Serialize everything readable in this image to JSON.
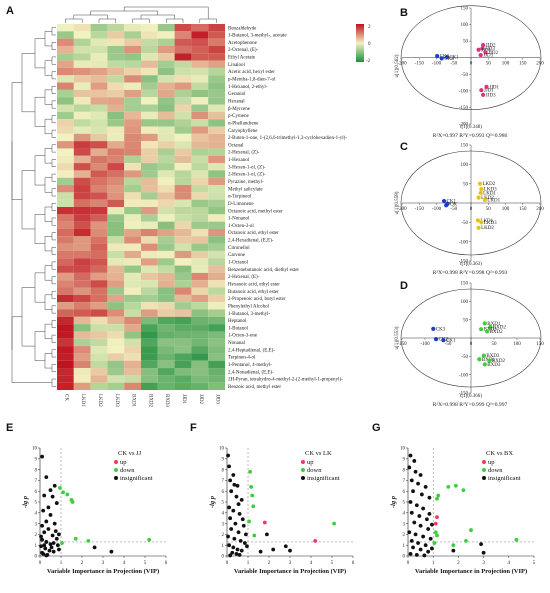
{
  "panels": {
    "A": "A",
    "B": "B",
    "C": "C",
    "D": "D",
    "E": "E",
    "F": "F",
    "G": "G"
  },
  "heatmap": {
    "compounds": [
      "Benzaldehyde",
      "1-Butanol, 3-methyl-, acetate",
      "Acetophenone",
      "2-Octenal, (E)-",
      "Ethyl Acetate",
      "Linalool",
      "Acetic acid, hexyl ester",
      "p-Mentha-1,8-dien-7-ol",
      "1-Hexanol, 2-ethyl-",
      "Geraniol",
      "Hexanal",
      "β-Myrcene",
      "p-Cymene",
      "α-Phellandrene",
      "Caryophyllene",
      "2-Buten-1-one, 1-(2,6,6-trimethyl-1,3-cyclohexadien-1-yl)-",
      "Octanal",
      "2-Hexenal, (Z)-",
      "1-Hexanol",
      "3-Hexen-1-ol, (Z)-",
      "2-Hexen-1-ol, (Z)-",
      "Pyrazine, methyl-",
      "Methyl salicylate",
      "α-Terpineol",
      "D-Limonene",
      "Octanoic acid, methyl ester",
      "1-Nonanol",
      "1-Octen-3-ol",
      "Octanoic acid, ethyl ester",
      "2,4-Hexadienal, (E,E)-",
      "Citronellol",
      "Carvone",
      "1-Octanol",
      "Benzenebutanoic acid, diethyl ester",
      "2-Hexenal, (E)-",
      "Hexanoic acid, ethyl ester",
      "Butanoic acid, ethyl ester",
      "2-Propenoic acid, butyl ester",
      "Phenylethyl Alcohol",
      "1-Butanol, 3-methyl-",
      "Heptanol",
      "1-Butanol",
      "1-Octen-3-one",
      "Nonanal",
      "2,4-Heptadienal, (E,E)-",
      "Terpinen-4-ol",
      "1-Pentanol, 4-methyl-",
      "2,4-Nonadienal, (E,E)-",
      "2H-Pyran, tetrahydro-4-methyl-2-(2-methyl-1-propenyl)-",
      "Benzoic acid, methyl ester"
    ],
    "samples": [
      "CK",
      "LKD1",
      "LKD2",
      "LKD3",
      "BXD1",
      "BXD2",
      "BXD3",
      "JJD1",
      "JJD2",
      "JJD3"
    ],
    "legend_ticks": [
      "2",
      "0",
      "-2"
    ],
    "colors": {
      "high": "#c0121f",
      "mid": "#f2f1c0",
      "low": "#1f8f3f"
    }
  },
  "pca": [
    {
      "id": "B",
      "x_label": "t[1](0.348)",
      "y_label": "u[1](0.562)",
      "x_ticks": [
        "-200",
        "-150",
        "-100",
        "-50",
        "0",
        "50",
        "100",
        "150",
        "200"
      ],
      "y_ticks": [
        "150",
        "100",
        "50",
        "-50",
        "-100",
        "-150",
        "-200"
      ],
      "stats": "R²X=0.997  R²Y=0.993  Q²=0.986",
      "groups": [
        {
          "color": "#1a3ccc",
          "points": [
            {
              "label": "CK3",
              "x": -98,
              "y": 5
            },
            {
              "label": "CK1",
              "x": -70,
              "y": 2
            },
            {
              "label": "CK2",
              "x": -85,
              "y": -2
            }
          ]
        },
        {
          "color": "#e0307a",
          "points": [
            {
              "label": "JJD2",
              "x": 35,
              "y": 38
            },
            {
              "label": "JJD3",
              "x": 33,
              "y": 28
            },
            {
              "label": "JJD1",
              "x": 22,
              "y": 24
            },
            {
              "label": "JJD2",
              "x": 42,
              "y": 16
            },
            {
              "label": "JJD3",
              "x": 28,
              "y": 8
            },
            {
              "label": "JJD1",
              "x": 30,
              "y": -98
            },
            {
              "label": "JJD3",
              "x": 35,
              "y": -112
            },
            {
              "label": "JJD1",
              "x": 45,
              "y": -88
            }
          ]
        }
      ]
    },
    {
      "id": "C",
      "x_label": "t[1](0.363)",
      "y_label": "u[1](0.558)",
      "x_ticks": [
        "-200",
        "-150",
        "-100",
        "-50",
        "0",
        "50",
        "100",
        "150",
        "200"
      ],
      "y_ticks": [
        "150",
        "100",
        "50",
        "-50",
        "-100",
        "-150"
      ],
      "stats": "R²X=0.998  R²Y=0.998  Q²=0.993",
      "groups": [
        {
          "color": "#1a3ccc",
          "points": [
            {
              "label": "CK1",
              "x": -78,
              "y": 5
            },
            {
              "label": "CK",
              "x": -68,
              "y": -2
            },
            {
              "label": "",
              "x": -72,
              "y": -6
            }
          ]
        },
        {
          "color": "#e6c31a",
          "points": [
            {
              "label": "LKD2",
              "x": 26,
              "y": 50
            },
            {
              "label": "LKD3",
              "x": 30,
              "y": 36
            },
            {
              "label": "LKD1",
              "x": 28,
              "y": 26
            },
            {
              "label": "LKD2",
              "x": 22,
              "y": 14
            },
            {
              "label": "LKD1",
              "x": 40,
              "y": 8
            },
            {
              "label": "LKD1",
              "x": 20,
              "y": -45
            },
            {
              "label": "LKD3",
              "x": 30,
              "y": -50
            },
            {
              "label": "LKD2",
              "x": 22,
              "y": -64
            }
          ]
        }
      ]
    },
    {
      "id": "D",
      "x_label": "t[1](0.366)",
      "y_label": "u[1](0.553)",
      "x_ticks": [
        "-150",
        "-100",
        "-50",
        "0",
        "50",
        "100",
        "150"
      ],
      "y_ticks": [
        "150",
        "100",
        "50",
        "-50",
        "-100",
        "-150"
      ],
      "stats": "R²X=0.998  R²Y=0.999  Q²=0.997",
      "groups": [
        {
          "color": "#1a3ccc",
          "points": [
            {
              "label": "CK3",
              "x": -82,
              "y": 25
            },
            {
              "label": "CK2",
              "x": -76,
              "y": -3
            },
            {
              "label": "CK1",
              "x": -60,
              "y": -6
            }
          ]
        },
        {
          "color": "#3ecf38",
          "points": [
            {
              "label": "BXD1",
              "x": 30,
              "y": 40
            },
            {
              "label": "BXD2",
              "x": 42,
              "y": 30
            },
            {
              "label": "BXD3",
              "x": 22,
              "y": 24
            },
            {
              "label": "BXD2",
              "x": 35,
              "y": 18
            },
            {
              "label": "BXD3",
              "x": 28,
              "y": -48
            },
            {
              "label": "BXD1",
              "x": 18,
              "y": -58
            },
            {
              "label": "BXD2",
              "x": 40,
              "y": -62
            },
            {
              "label": "BXD3",
              "x": 30,
              "y": -72
            }
          ]
        }
      ]
    }
  ],
  "volcano_legend": {
    "up": "up",
    "down": "down",
    "insig": "insignificant",
    "up_color": "#ef3b5b",
    "down_color": "#3ccf3c",
    "insig_color": "#111111"
  },
  "volcano": [
    {
      "id": "E",
      "title": "CK vs JJ",
      "x_label": "Variable Importance in Projection (VIP)",
      "y_label": "-lg p",
      "x_ticks": [
        "0",
        "1",
        "2",
        "3",
        "4",
        "5",
        "6"
      ],
      "y_ticks": [
        "0",
        "1",
        "2",
        "3",
        "4",
        "5",
        "6",
        "7",
        "8",
        "9",
        "10"
      ],
      "xlim": [
        0,
        6
      ],
      "ylim": [
        0,
        10
      ],
      "points": {
        "down": [
          [
            1.1,
            5.9
          ],
          [
            1.3,
            5.7
          ],
          [
            1.5,
            5.2
          ],
          [
            1.55,
            5.0
          ],
          [
            1.7,
            1.6
          ],
          [
            2.3,
            1.4
          ],
          [
            5.2,
            1.5
          ],
          [
            0.95,
            6.3
          ],
          [
            1.05,
            1.2
          ]
        ],
        "up": [],
        "insig": [
          [
            0.1,
            9.2
          ],
          [
            0.3,
            7.3
          ],
          [
            0.5,
            6.1
          ],
          [
            0.2,
            5.6
          ],
          [
            0.6,
            5.5
          ],
          [
            0.4,
            4.5
          ],
          [
            0.15,
            4.2
          ],
          [
            0.5,
            3.8
          ],
          [
            0.3,
            3.2
          ],
          [
            0.7,
            3.0
          ],
          [
            0.1,
            2.8
          ],
          [
            0.4,
            2.5
          ],
          [
            0.2,
            2.2
          ],
          [
            0.6,
            1.9
          ],
          [
            0.8,
            1.6
          ],
          [
            0.1,
            1.5
          ],
          [
            0.3,
            1.3
          ],
          [
            0.5,
            1.1
          ],
          [
            0.05,
            0.9
          ],
          [
            0.25,
            0.7
          ],
          [
            0.45,
            0.5
          ],
          [
            0.65,
            0.4
          ],
          [
            0.15,
            0.2
          ],
          [
            0.35,
            0.1
          ],
          [
            0.9,
            0.6
          ],
          [
            0.75,
            2.3
          ],
          [
            0.85,
            1.0
          ],
          [
            0.55,
            0.8
          ],
          [
            0.1,
            0.3
          ],
          [
            0.2,
            1.0
          ],
          [
            0.7,
            6.5
          ],
          [
            0.8,
            4.9
          ],
          [
            3.4,
            0.4
          ],
          [
            2.6,
            0.8
          ],
          [
            0.3,
            0.05
          ],
          [
            0.05,
            1.8
          ],
          [
            0.9,
            2.0
          ],
          [
            0.65,
            1.2
          ]
        ]
      }
    },
    {
      "id": "F",
      "title": "CK vs LK",
      "x_label": "Variable Importance in Projection (VIP)",
      "y_label": "-lg p",
      "x_ticks": [
        "0",
        "1",
        "2",
        "3",
        "4",
        "5",
        "6"
      ],
      "y_ticks": [
        "0",
        "1",
        "2",
        "3",
        "4",
        "5",
        "6",
        "7",
        "8",
        "9",
        "10"
      ],
      "xlim": [
        0,
        6
      ],
      "ylim": [
        0,
        10
      ],
      "points": {
        "down": [
          [
            1.1,
            7.8
          ],
          [
            1.15,
            6.4
          ],
          [
            1.2,
            5.6
          ],
          [
            1.25,
            4.6
          ],
          [
            1.3,
            1.9
          ],
          [
            5.1,
            3.0
          ],
          [
            1.05,
            3.2
          ]
        ],
        "up": [
          [
            1.8,
            3.1
          ],
          [
            4.2,
            1.4
          ]
        ],
        "insig": [
          [
            0.05,
            9.3
          ],
          [
            0.1,
            8.3
          ],
          [
            0.3,
            7.5
          ],
          [
            0.15,
            7.0
          ],
          [
            0.35,
            6.6
          ],
          [
            0.5,
            6.5
          ],
          [
            0.2,
            6.0
          ],
          [
            0.45,
            5.5
          ],
          [
            0.7,
            5.2
          ],
          [
            0.1,
            4.5
          ],
          [
            0.3,
            4.2
          ],
          [
            0.6,
            3.9
          ],
          [
            0.15,
            3.5
          ],
          [
            0.4,
            3.0
          ],
          [
            0.8,
            2.8
          ],
          [
            0.2,
            2.5
          ],
          [
            0.55,
            2.2
          ],
          [
            0.9,
            2.0
          ],
          [
            0.05,
            1.8
          ],
          [
            0.35,
            1.6
          ],
          [
            0.65,
            1.4
          ],
          [
            0.85,
            1.2
          ],
          [
            0.1,
            1.0
          ],
          [
            0.3,
            0.8
          ],
          [
            0.5,
            0.6
          ],
          [
            0.7,
            0.5
          ],
          [
            0.25,
            0.3
          ],
          [
            0.45,
            0.2
          ],
          [
            0.6,
            0.1
          ],
          [
            0.15,
            0.05
          ],
          [
            0.95,
            0.9
          ],
          [
            1.9,
            2.0
          ],
          [
            2.2,
            0.6
          ],
          [
            3.0,
            0.5
          ],
          [
            1.6,
            0.4
          ],
          [
            2.8,
            0.9
          ],
          [
            0.75,
            3.4
          ],
          [
            0.55,
            4.8
          ]
        ]
      }
    },
    {
      "id": "G",
      "title": "CK vs BX",
      "x_label": "Variable Importance in Projection (VIP)",
      "y_label": "-lg p",
      "x_ticks": [
        "0",
        "1",
        "2",
        "3",
        "4",
        "5"
      ],
      "y_ticks": [
        "0",
        "1",
        "2",
        "3",
        "4",
        "5",
        "6",
        "7",
        "8",
        "9",
        "10"
      ],
      "xlim": [
        0,
        5
      ],
      "ylim": [
        0,
        10
      ],
      "points": {
        "down": [
          [
            1.2,
            5.6
          ],
          [
            1.6,
            6.4
          ],
          [
            1.9,
            6.5
          ],
          [
            2.2,
            6.1
          ],
          [
            1.15,
            5.3
          ],
          [
            1.1,
            2.2
          ],
          [
            1.15,
            1.9
          ],
          [
            2.3,
            1.4
          ],
          [
            4.3,
            1.5
          ],
          [
            1.05,
            1.2
          ],
          [
            2.5,
            2.4
          ],
          [
            1.8,
            1.0
          ]
        ],
        "up": [
          [
            1.15,
            3.6
          ],
          [
            1.1,
            3.0
          ]
        ],
        "insig": [
          [
            0.1,
            9.3
          ],
          [
            0.25,
            8.8
          ],
          [
            0.05,
            8.2
          ],
          [
            0.3,
            7.8
          ],
          [
            0.5,
            7.5
          ],
          [
            0.15,
            7.0
          ],
          [
            0.4,
            6.7
          ],
          [
            0.7,
            6.4
          ],
          [
            0.2,
            6.0
          ],
          [
            0.55,
            5.7
          ],
          [
            0.85,
            5.4
          ],
          [
            0.1,
            5.0
          ],
          [
            0.35,
            4.7
          ],
          [
            0.6,
            4.4
          ],
          [
            0.15,
            4.0
          ],
          [
            0.45,
            3.7
          ],
          [
            0.75,
            3.4
          ],
          [
            0.25,
            3.1
          ],
          [
            0.5,
            2.8
          ],
          [
            0.8,
            2.5
          ],
          [
            0.05,
            2.2
          ],
          [
            0.3,
            2.0
          ],
          [
            0.6,
            1.8
          ],
          [
            0.9,
            1.6
          ],
          [
            0.15,
            1.4
          ],
          [
            0.4,
            1.2
          ],
          [
            0.7,
            1.0
          ],
          [
            0.2,
            0.8
          ],
          [
            0.5,
            0.6
          ],
          [
            0.8,
            0.4
          ],
          [
            0.1,
            0.2
          ],
          [
            0.35,
            0.1
          ],
          [
            0.65,
            0.05
          ],
          [
            0.95,
            0.7
          ],
          [
            0.85,
            3.9
          ],
          [
            0.95,
            2.9
          ],
          [
            1.8,
            0.5
          ],
          [
            3.0,
            0.3
          ],
          [
            2.9,
            1.1
          ]
        ]
      }
    }
  ]
}
